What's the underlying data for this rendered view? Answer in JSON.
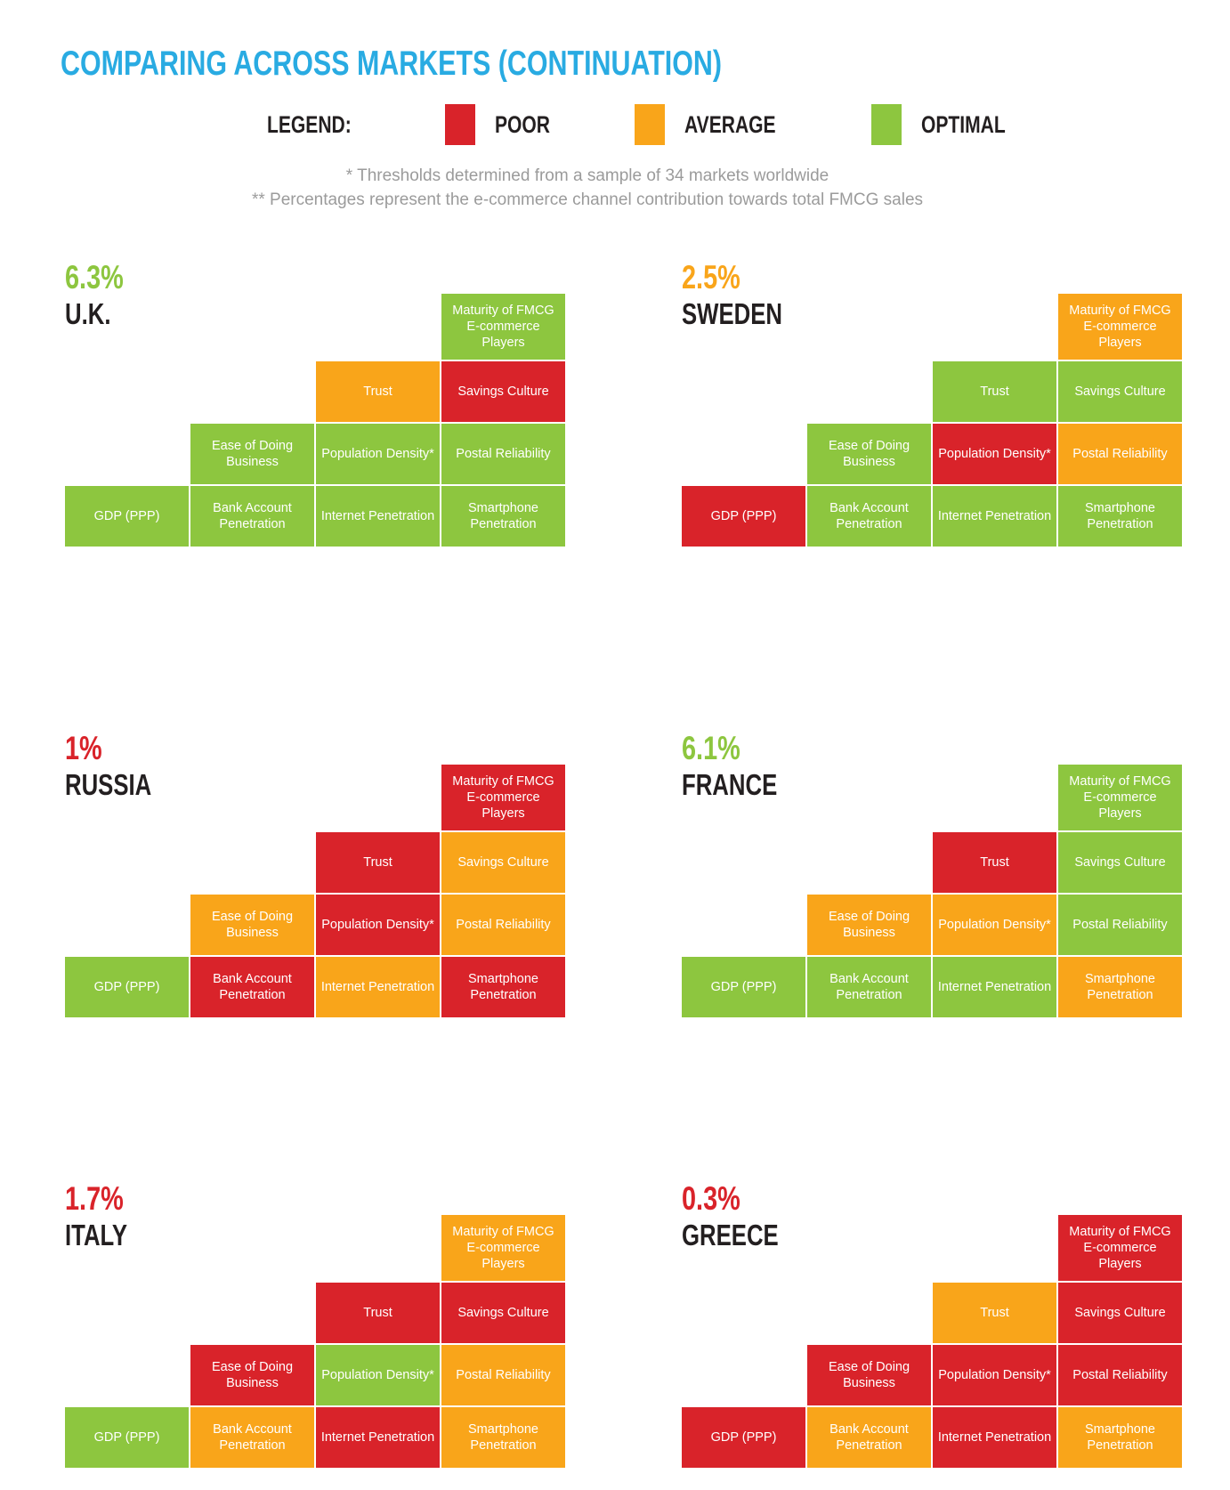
{
  "page": {
    "title": "COMPARING ACROSS MARKETS (CONTINUATION)",
    "footnote1": "* Thresholds determined from a sample of 34 markets worldwide",
    "footnote2": "** Percentages represent the e-commerce channel contribution towards total FMCG sales"
  },
  "legend": {
    "label": "LEGEND:",
    "items": [
      {
        "label": "POOR",
        "rating": "poor"
      },
      {
        "label": "AVERAGE",
        "rating": "average"
      },
      {
        "label": "OPTIMAL",
        "rating": "optimal"
      }
    ]
  },
  "colors": {
    "poor": "#d9232a",
    "average": "#f9a51a",
    "optimal": "#8dc63f",
    "title": "#29abe2",
    "footnote": "#9b9b9b",
    "market-name": "#231f20"
  },
  "factors": [
    "Maturity of FMCG E-commerce Players",
    "Trust",
    "Savings Culture",
    "Ease of Doing Business",
    "Population Density*",
    "Postal Reliability",
    "GDP (PPP)",
    "Bank Account Penetration",
    "Internet Penetration",
    "Smartphone Penetration"
  ],
  "markets": [
    {
      "name": "U.K.",
      "share": "6.3%",
      "share_rating": "optimal",
      "ratings": [
        "optimal",
        "average",
        "poor",
        "optimal",
        "optimal",
        "optimal",
        "optimal",
        "optimal",
        "optimal",
        "optimal"
      ]
    },
    {
      "name": "SWEDEN",
      "share": "2.5%",
      "share_rating": "average",
      "ratings": [
        "average",
        "optimal",
        "optimal",
        "optimal",
        "poor",
        "average",
        "poor",
        "optimal",
        "optimal",
        "optimal"
      ]
    },
    {
      "name": "RUSSIA",
      "share": "1%",
      "share_rating": "poor",
      "ratings": [
        "poor",
        "poor",
        "average",
        "average",
        "poor",
        "average",
        "optimal",
        "poor",
        "average",
        "poor"
      ]
    },
    {
      "name": "FRANCE",
      "share": "6.1%",
      "share_rating": "optimal",
      "ratings": [
        "optimal",
        "poor",
        "optimal",
        "average",
        "average",
        "optimal",
        "optimal",
        "optimal",
        "optimal",
        "average"
      ]
    },
    {
      "name": "ITALY",
      "share": "1.7%",
      "share_rating": "poor",
      "ratings": [
        "average",
        "poor",
        "poor",
        "poor",
        "optimal",
        "average",
        "optimal",
        "average",
        "poor",
        "average"
      ]
    },
    {
      "name": "GREECE",
      "share": "0.3%",
      "share_rating": "poor",
      "ratings": [
        "poor",
        "average",
        "poor",
        "poor",
        "poor",
        "poor",
        "poor",
        "average",
        "poor",
        "average"
      ]
    }
  ],
  "chart_data": {
    "type": "heatmap",
    "title": "COMPARING ACROSS MARKETS (CONTINUATION)",
    "legend": [
      "POOR",
      "AVERAGE",
      "OPTIMAL"
    ],
    "legend_position": "top",
    "categories": [
      "Maturity of FMCG E-commerce Players",
      "Trust",
      "Savings Culture",
      "Ease of Doing Business",
      "Population Density*",
      "Postal Reliability",
      "GDP (PPP)",
      "Bank Account Penetration",
      "Internet Penetration",
      "Smartphone Penetration"
    ],
    "series": [
      {
        "name": "U.K.",
        "ecommerce_share": "6.3%",
        "values": [
          "optimal",
          "average",
          "poor",
          "optimal",
          "optimal",
          "optimal",
          "optimal",
          "optimal",
          "optimal",
          "optimal"
        ]
      },
      {
        "name": "SWEDEN",
        "ecommerce_share": "2.5%",
        "values": [
          "average",
          "optimal",
          "optimal",
          "optimal",
          "poor",
          "average",
          "poor",
          "optimal",
          "optimal",
          "optimal"
        ]
      },
      {
        "name": "RUSSIA",
        "ecommerce_share": "1%",
        "values": [
          "poor",
          "poor",
          "average",
          "average",
          "poor",
          "average",
          "optimal",
          "poor",
          "average",
          "poor"
        ]
      },
      {
        "name": "FRANCE",
        "ecommerce_share": "6.1%",
        "values": [
          "optimal",
          "poor",
          "optimal",
          "average",
          "average",
          "optimal",
          "optimal",
          "optimal",
          "optimal",
          "average"
        ]
      },
      {
        "name": "ITALY",
        "ecommerce_share": "1.7%",
        "values": [
          "average",
          "poor",
          "poor",
          "poor",
          "optimal",
          "average",
          "optimal",
          "average",
          "poor",
          "average"
        ]
      },
      {
        "name": "GREECE",
        "ecommerce_share": "0.3%",
        "values": [
          "poor",
          "average",
          "poor",
          "poor",
          "poor",
          "poor",
          "poor",
          "average",
          "poor",
          "average"
        ]
      }
    ],
    "annotations": [
      "* Thresholds determined from a sample of 34 markets worldwide",
      "** Percentages represent the e-commerce channel contribution towards total FMCG sales"
    ]
  }
}
